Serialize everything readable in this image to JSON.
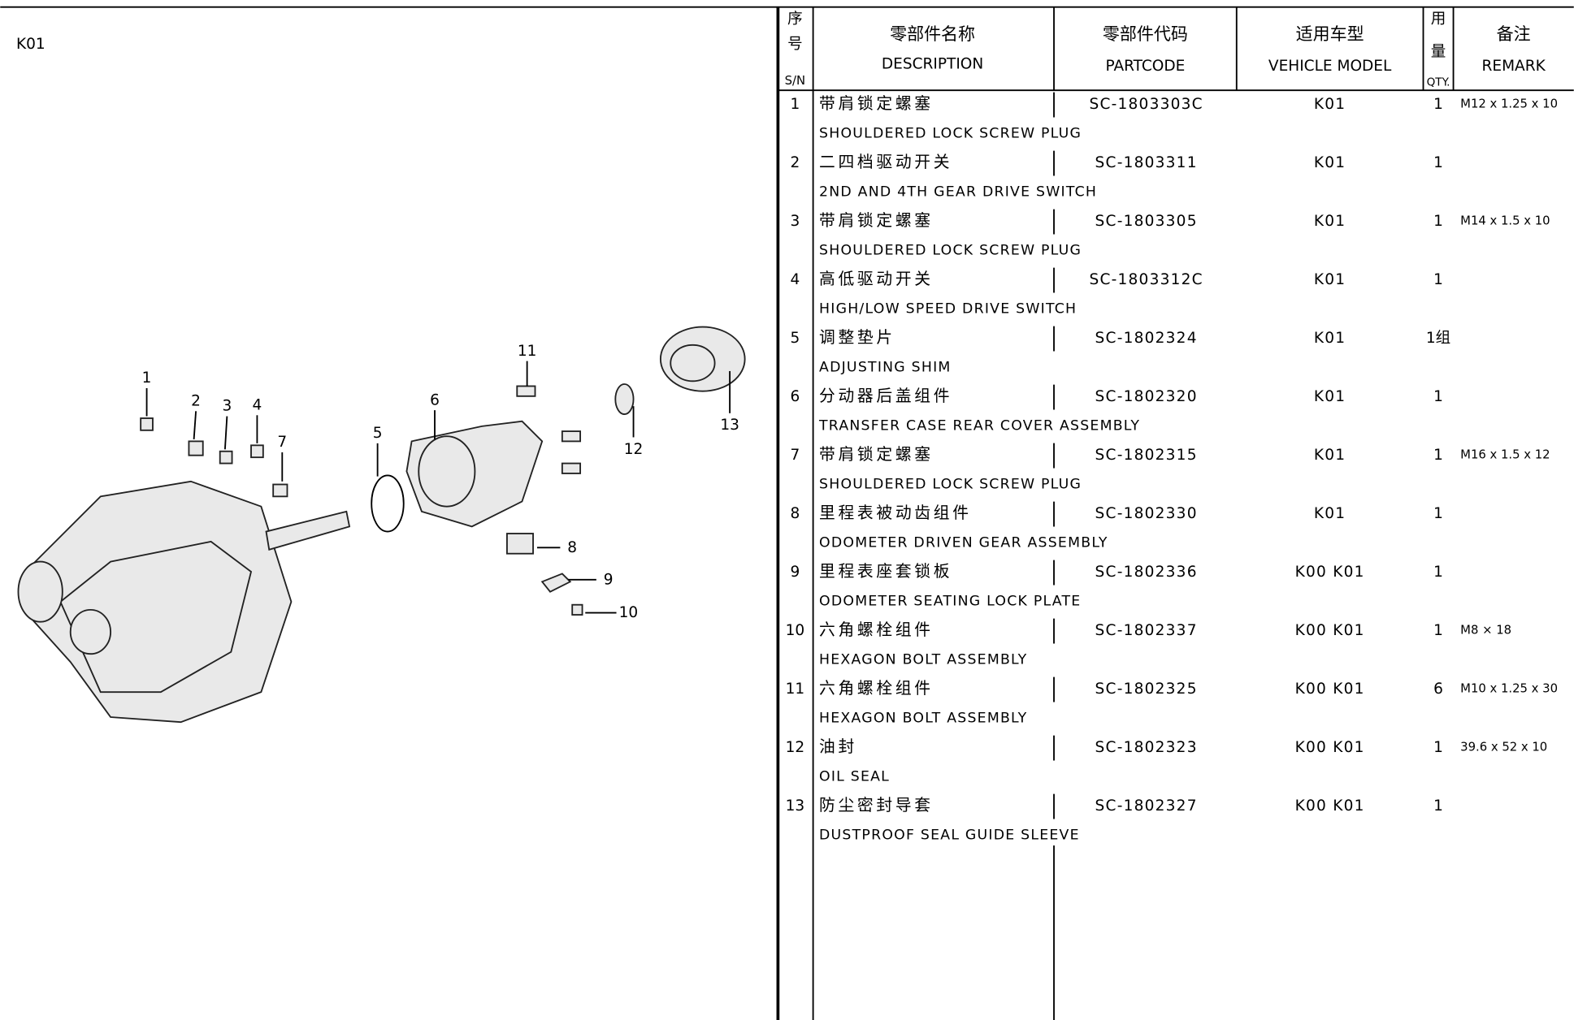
{
  "page_label": "K01",
  "callouts": [
    "1",
    "2",
    "3",
    "4",
    "5",
    "6",
    "7",
    "8",
    "9",
    "10",
    "11",
    "12",
    "13"
  ],
  "table": {
    "header": {
      "sn": {
        "cn": [
          "序",
          "号"
        ],
        "en": "S/N"
      },
      "description": {
        "cn": "零部件名称",
        "en": "DESCRIPTION"
      },
      "partcode": {
        "cn": "零部件代码",
        "en": "PARTCODE"
      },
      "model": {
        "cn": "适用车型",
        "en": "VEHICLE MODEL"
      },
      "qty": {
        "cn": [
          "用",
          "量"
        ],
        "en": "QTY."
      },
      "remark": {
        "cn": "备注",
        "en": "REMARK"
      }
    },
    "rows": [
      {
        "sn": "1",
        "cn": "带肩锁定螺塞",
        "en": "SHOULDERED LOCK SCREW PLUG",
        "code": "SC-1803303C",
        "model": "K01",
        "qty": "1",
        "remark": "M12 x 1.25 x 10"
      },
      {
        "sn": "2",
        "cn": "二四档驱动开关",
        "en": "2ND AND 4TH GEAR DRIVE SWITCH",
        "code": "SC-1803311",
        "model": "K01",
        "qty": "1",
        "remark": null
      },
      {
        "sn": "3",
        "cn": "带肩锁定螺塞",
        "en": "SHOULDERED LOCK SCREW PLUG",
        "code": "SC-1803305",
        "model": "K01",
        "qty": "1",
        "remark": "M14 x 1.5 x 10"
      },
      {
        "sn": "4",
        "cn": "高低驱动开关",
        "en": "HIGH/LOW SPEED DRIVE SWITCH",
        "code": "SC-1803312C",
        "model": "K01",
        "qty": "1",
        "remark": null
      },
      {
        "sn": "5",
        "cn": "调整垫片",
        "en": "ADJUSTING SHIM",
        "code": "SC-1802324",
        "model": "K01",
        "qty": "1组",
        "remark": null
      },
      {
        "sn": "6",
        "cn": "分动器后盖组件",
        "en": "TRANSFER CASE REAR COVER ASSEMBLY",
        "code": "SC-1802320",
        "model": "K01",
        "qty": "1",
        "remark": null
      },
      {
        "sn": "7",
        "cn": "带肩锁定螺塞",
        "en": "SHOULDERED LOCK SCREW PLUG",
        "code": "SC-1802315",
        "model": "K01",
        "qty": "1",
        "remark": "M16 x 1.5 x 12"
      },
      {
        "sn": "8",
        "cn": "里程表被动齿组件",
        "en": "ODOMETER DRIVEN GEAR ASSEMBLY",
        "code": "SC-1802330",
        "model": "K01",
        "qty": "1",
        "remark": null
      },
      {
        "sn": "9",
        "cn": "里程表座套锁板",
        "en": "ODOMETER SEATING LOCK PLATE",
        "code": "SC-1802336",
        "model": "K00 K01",
        "qty": "1",
        "remark": null
      },
      {
        "sn": "10",
        "cn": "六角螺栓组件",
        "en": "HEXAGON BOLT ASSEMBLY",
        "code": "SC-1802337",
        "model": "K00 K01",
        "qty": "1",
        "remark": "M8 × 18"
      },
      {
        "sn": "11",
        "cn": "六角螺栓组件",
        "en": "HEXAGON BOLT ASSEMBLY",
        "code": "SC-1802325",
        "model": "K00 K01",
        "qty": "6",
        "remark": "M10 x 1.25 x 30"
      },
      {
        "sn": "12",
        "cn": "油封",
        "en": "OIL SEAL",
        "code": "SC-1802323",
        "model": "K00 K01",
        "qty": "1",
        "remark": "39.6 x 52 x 10"
      },
      {
        "sn": "13",
        "cn": "防尘密封导套",
        "en": "DUSTPROOF SEAL GUIDE SLEEVE",
        "code": "SC-1802327",
        "model": "K00 K01",
        "qty": "1",
        "remark": null
      }
    ]
  }
}
